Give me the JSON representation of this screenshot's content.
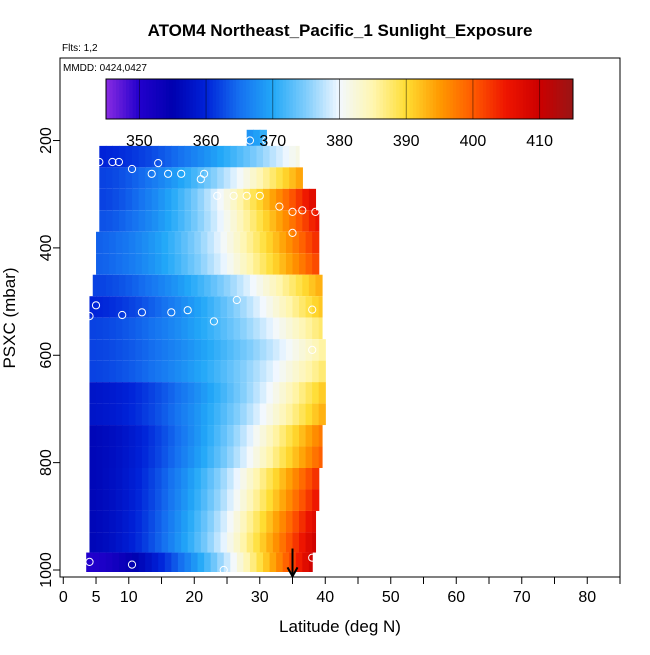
{
  "chart_data": {
    "type": "heatmap",
    "title": "ATOM4 Northeast_Pacific_1 Sunlight_Exposure",
    "subtitle_flights": "Flts: 1,2",
    "subtitle_dates": "MMDD: 0424,0427",
    "xlabel": "Latitude (deg N)",
    "ylabel": "PSXC (mbar)",
    "xlim": [
      0,
      85
    ],
    "ylim": [
      1000,
      50
    ],
    "y_reversed": true,
    "x_ticks": [
      0,
      5,
      10,
      20,
      30,
      40,
      50,
      60,
      70,
      80
    ],
    "x_tick_labels": [
      "0",
      "5",
      "10",
      "20",
      "30",
      "40",
      "50",
      "60",
      "70",
      "80"
    ],
    "x_minor_ticks": [
      15,
      25,
      35,
      45,
      55,
      65,
      75,
      85
    ],
    "y_ticks": [
      200,
      400,
      600,
      800,
      1000
    ],
    "y_tick_labels": [
      "200",
      "400",
      "600",
      "800",
      "1000"
    ],
    "colorbar": {
      "min": 345,
      "max": 415,
      "ticks": [
        350,
        360,
        370,
        380,
        390,
        400,
        410
      ],
      "tick_labels": [
        "350",
        "360",
        "370",
        "380",
        "390",
        "400",
        "410"
      ],
      "stops": [
        {
          "v": 345,
          "c": "#8a2be2"
        },
        {
          "v": 350,
          "c": "#2200cc"
        },
        {
          "v": 355,
          "c": "#0000b0"
        },
        {
          "v": 360,
          "c": "#0022d8"
        },
        {
          "v": 365,
          "c": "#1570f0"
        },
        {
          "v": 370,
          "c": "#22a8f8"
        },
        {
          "v": 375,
          "c": "#80cdfc"
        },
        {
          "v": 380,
          "c": "#f2f8ff"
        },
        {
          "v": 385,
          "c": "#fff6b0"
        },
        {
          "v": 390,
          "c": "#ffdd33"
        },
        {
          "v": 395,
          "c": "#ff9a00"
        },
        {
          "v": 400,
          "c": "#ff5a00"
        },
        {
          "v": 405,
          "c": "#ee1500"
        },
        {
          "v": 410,
          "c": "#cc0000"
        },
        {
          "v": 415,
          "c": "#991515"
        }
      ]
    },
    "rows": [
      {
        "p": 190,
        "x0": 28,
        "x1": 31,
        "v0": 368,
        "v1": 372
      },
      {
        "p": 230,
        "x0": 5.5,
        "x1": 36,
        "v0": 360,
        "v1": 382
      },
      {
        "p": 270,
        "x0": 5.5,
        "x1": 36.5,
        "v0": 362,
        "v1": 395
      },
      {
        "p": 310,
        "x0": 5.5,
        "x1": 38.5,
        "v0": 362,
        "v1": 408
      },
      {
        "p": 350,
        "x0": 5.5,
        "x1": 39,
        "v0": 363,
        "v1": 406
      },
      {
        "p": 390,
        "x0": 5,
        "x1": 39,
        "v0": 364,
        "v1": 404
      },
      {
        "p": 430,
        "x0": 5,
        "x1": 39,
        "v0": 364,
        "v1": 402
      },
      {
        "p": 470,
        "x0": 4.5,
        "x1": 39.5,
        "v0": 362,
        "v1": 394
      },
      {
        "p": 510,
        "x0": 4,
        "x1": 39.5,
        "v0": 360,
        "v1": 392
      },
      {
        "p": 550,
        "x0": 4,
        "x1": 39.5,
        "v0": 362,
        "v1": 388
      },
      {
        "p": 590,
        "x0": 4,
        "x1": 40,
        "v0": 362,
        "v1": 386
      },
      {
        "p": 630,
        "x0": 4,
        "x1": 40,
        "v0": 362,
        "v1": 388
      },
      {
        "p": 670,
        "x0": 4,
        "x1": 40,
        "v0": 358,
        "v1": 392
      },
      {
        "p": 710,
        "x0": 4,
        "x1": 40,
        "v0": 358,
        "v1": 394
      },
      {
        "p": 750,
        "x0": 4,
        "x1": 39.5,
        "v0": 356,
        "v1": 398
      },
      {
        "p": 790,
        "x0": 4,
        "x1": 39.5,
        "v0": 356,
        "v1": 400
      },
      {
        "p": 830,
        "x0": 4,
        "x1": 39,
        "v0": 356,
        "v1": 404
      },
      {
        "p": 870,
        "x0": 4,
        "x1": 39,
        "v0": 356,
        "v1": 406
      },
      {
        "p": 910,
        "x0": 4,
        "x1": 38.5,
        "v0": 356,
        "v1": 408
      },
      {
        "p": 950,
        "x0": 4,
        "x1": 38.5,
        "v0": 356,
        "v1": 410
      },
      {
        "p": 985,
        "x0": 3.5,
        "x1": 38,
        "v0": 350,
        "v1": 410
      }
    ],
    "points": [
      [
        28.5,
        200
      ],
      [
        31,
        200
      ],
      [
        5.5,
        240
      ],
      [
        7.5,
        240
      ],
      [
        8.5,
        240
      ],
      [
        10.5,
        253
      ],
      [
        13.5,
        262
      ],
      [
        14.5,
        242
      ],
      [
        16,
        262
      ],
      [
        18,
        262
      ],
      [
        21,
        272
      ],
      [
        21.5,
        262
      ],
      [
        23.5,
        303
      ],
      [
        26,
        303
      ],
      [
        28,
        303
      ],
      [
        30,
        303
      ],
      [
        33,
        323
      ],
      [
        35,
        333
      ],
      [
        36.5,
        330
      ],
      [
        38.5,
        333
      ],
      [
        35,
        372
      ],
      [
        4,
        527
      ],
      [
        5,
        507
      ],
      [
        9,
        525
      ],
      [
        12,
        520
      ],
      [
        16.5,
        520
      ],
      [
        19,
        516
      ],
      [
        23,
        537
      ],
      [
        26.5,
        497
      ],
      [
        38,
        515
      ],
      [
        38,
        590
      ],
      [
        4,
        985
      ],
      [
        10.5,
        990
      ],
      [
        24.5,
        1000
      ],
      [
        38,
        977
      ]
    ],
    "arrow": {
      "x": 35,
      "p_from": 960,
      "p_to": 1010
    }
  }
}
